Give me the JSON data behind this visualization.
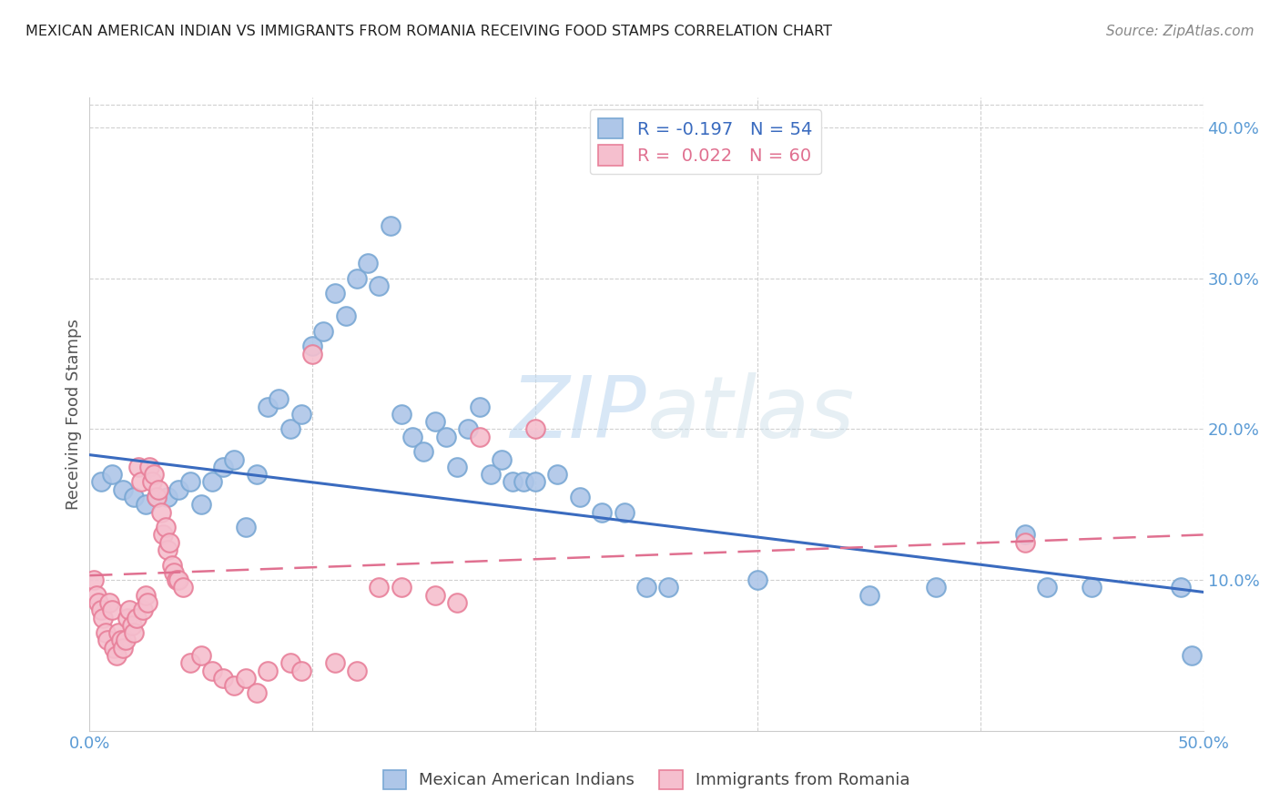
{
  "title": "MEXICAN AMERICAN INDIAN VS IMMIGRANTS FROM ROMANIA RECEIVING FOOD STAMPS CORRELATION CHART",
  "source": "Source: ZipAtlas.com",
  "ylabel": "Receiving Food Stamps",
  "x_min": 0.0,
  "x_max": 0.5,
  "y_min": 0.0,
  "y_max": 0.42,
  "blue_color": "#aec6e8",
  "blue_edge_color": "#7aa8d4",
  "pink_color": "#f5bfce",
  "pink_edge_color": "#e8809a",
  "blue_line_color": "#3a6bbf",
  "pink_line_color": "#e07090",
  "axis_color": "#5b9bd5",
  "legend_label_blue": "Mexican American Indians",
  "legend_label_pink": "Immigrants from Romania",
  "watermark_zip": "ZIP",
  "watermark_atlas": "atlas",
  "blue_line_x0": 0.0,
  "blue_line_y0": 0.183,
  "blue_line_x1": 0.5,
  "blue_line_y1": 0.092,
  "pink_line_x0": 0.0,
  "pink_line_y0": 0.103,
  "pink_line_x1": 0.5,
  "pink_line_y1": 0.13,
  "blue_x": [
    0.005,
    0.01,
    0.015,
    0.02,
    0.025,
    0.03,
    0.035,
    0.04,
    0.045,
    0.05,
    0.055,
    0.06,
    0.065,
    0.07,
    0.075,
    0.08,
    0.085,
    0.09,
    0.095,
    0.1,
    0.105,
    0.11,
    0.115,
    0.12,
    0.125,
    0.13,
    0.135,
    0.14,
    0.145,
    0.15,
    0.155,
    0.16,
    0.165,
    0.17,
    0.175,
    0.18,
    0.185,
    0.19,
    0.195,
    0.2,
    0.21,
    0.22,
    0.23,
    0.24,
    0.25,
    0.26,
    0.3,
    0.35,
    0.38,
    0.42,
    0.43,
    0.45,
    0.49,
    0.495
  ],
  "blue_y": [
    0.165,
    0.17,
    0.16,
    0.155,
    0.15,
    0.155,
    0.155,
    0.16,
    0.165,
    0.15,
    0.165,
    0.175,
    0.18,
    0.135,
    0.17,
    0.215,
    0.22,
    0.2,
    0.21,
    0.255,
    0.265,
    0.29,
    0.275,
    0.3,
    0.31,
    0.295,
    0.335,
    0.21,
    0.195,
    0.185,
    0.205,
    0.195,
    0.175,
    0.2,
    0.215,
    0.17,
    0.18,
    0.165,
    0.165,
    0.165,
    0.17,
    0.155,
    0.145,
    0.145,
    0.095,
    0.095,
    0.1,
    0.09,
    0.095,
    0.13,
    0.095,
    0.095,
    0.095,
    0.05
  ],
  "pink_x": [
    0.002,
    0.003,
    0.004,
    0.005,
    0.006,
    0.007,
    0.008,
    0.009,
    0.01,
    0.011,
    0.012,
    0.013,
    0.014,
    0.015,
    0.016,
    0.017,
    0.018,
    0.019,
    0.02,
    0.021,
    0.022,
    0.023,
    0.024,
    0.025,
    0.026,
    0.027,
    0.028,
    0.029,
    0.03,
    0.031,
    0.032,
    0.033,
    0.034,
    0.035,
    0.036,
    0.037,
    0.038,
    0.039,
    0.04,
    0.042,
    0.045,
    0.05,
    0.055,
    0.06,
    0.065,
    0.07,
    0.075,
    0.08,
    0.09,
    0.095,
    0.1,
    0.11,
    0.12,
    0.13,
    0.14,
    0.155,
    0.165,
    0.175,
    0.2,
    0.42
  ],
  "pink_y": [
    0.1,
    0.09,
    0.085,
    0.08,
    0.075,
    0.065,
    0.06,
    0.085,
    0.08,
    0.055,
    0.05,
    0.065,
    0.06,
    0.055,
    0.06,
    0.075,
    0.08,
    0.07,
    0.065,
    0.075,
    0.175,
    0.165,
    0.08,
    0.09,
    0.085,
    0.175,
    0.165,
    0.17,
    0.155,
    0.16,
    0.145,
    0.13,
    0.135,
    0.12,
    0.125,
    0.11,
    0.105,
    0.1,
    0.1,
    0.095,
    0.045,
    0.05,
    0.04,
    0.035,
    0.03,
    0.035,
    0.025,
    0.04,
    0.045,
    0.04,
    0.25,
    0.045,
    0.04,
    0.095,
    0.095,
    0.09,
    0.085,
    0.195,
    0.2,
    0.125
  ]
}
